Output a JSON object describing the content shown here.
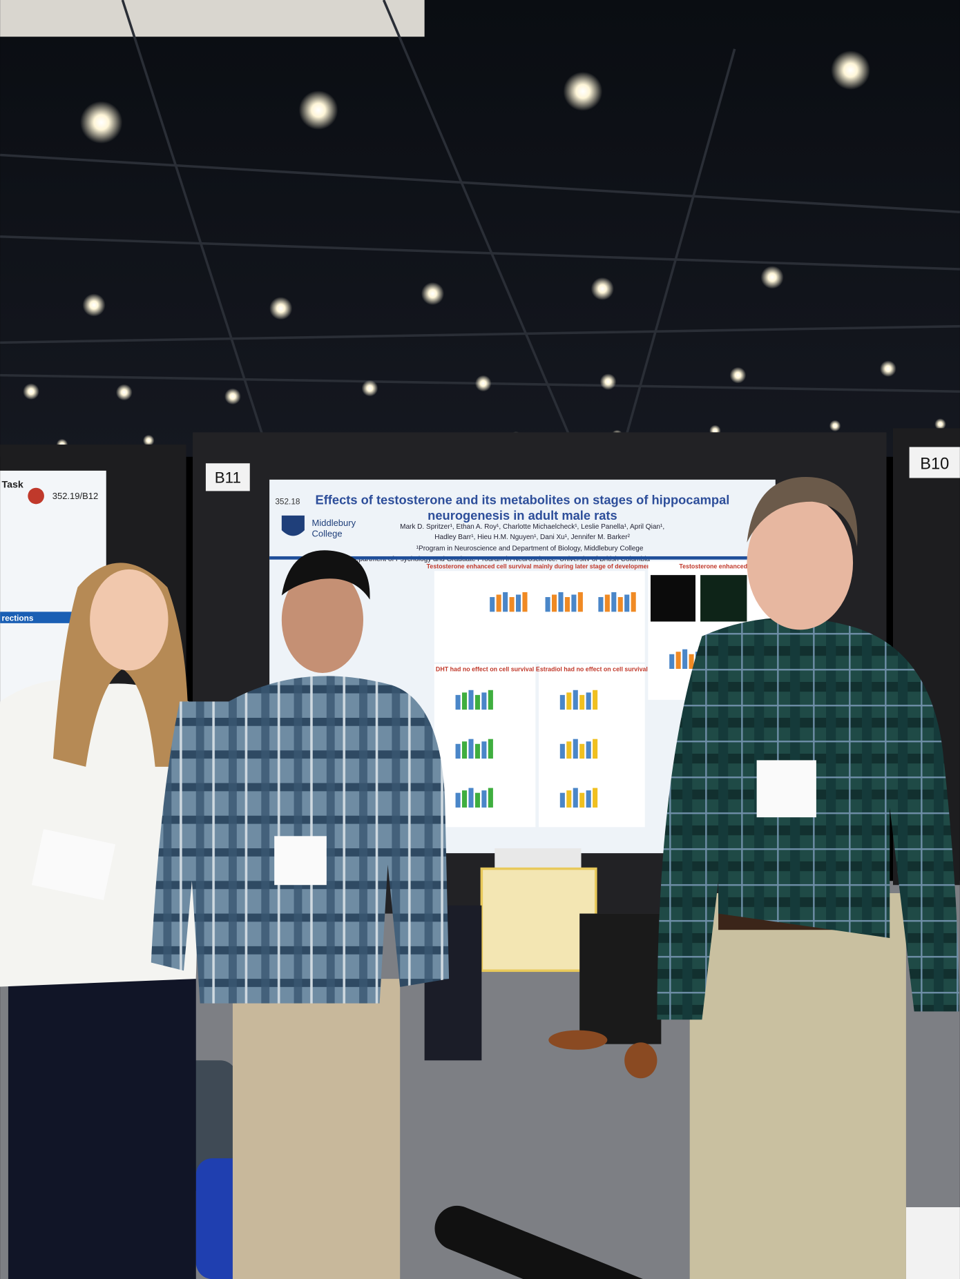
{
  "boards": {
    "left_label": "B11",
    "right_label": "B10"
  },
  "left_poster": {
    "title_fragment": "Task",
    "number": "352.19/B12",
    "heading_fragment": "rections"
  },
  "poster": {
    "number": "352.18",
    "title_lines": [
      "Effects of testosterone and its metabolites on stages of hippocampal",
      "neurogenesis in adult male rats"
    ],
    "logo_lines": [
      "Middlebury",
      "College"
    ],
    "author_lines": [
      "Mark D. Spritzer¹, Ethan A. Roy¹, Charlotte Michaelcheck¹, Leslie Panella¹, April Qian¹,",
      "Hadley Barr¹, Hieu H.M. Nguyen¹, Dani Xu¹, Jennifer M. Barker²"
    ],
    "affiliations": [
      "¹Program in Neuroscience and Department of Biology, Middlebury College",
      "²Department of Psychology and Graduate Program in Neuroscience, University of British Columbia"
    ],
    "section_headings": [
      "Testosterone enhanced cell survival mainly during later stage of development",
      "DHT had no effect on cell survival",
      "Estradiol had no effect on cell survival",
      "Testosterone enhanced ne"
    ]
  }
}
